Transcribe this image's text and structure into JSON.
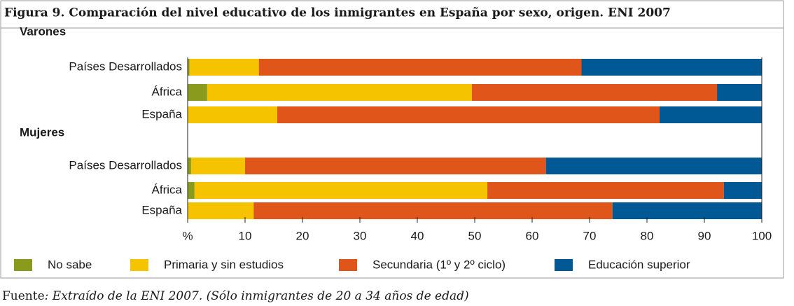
{
  "chart_data": {
    "type": "stacked_barh",
    "title": "Figura 9. Comparación del nivel educativo de los inmigrantes en España por sexo, origen. ENI 2007",
    "group_labels": [
      "Varones",
      "Mujeres"
    ],
    "categories": [
      "Países Desarrollados",
      "África",
      "España",
      "Países Desarrollados",
      "África",
      "España"
    ],
    "series": [
      {
        "name": "No sabe",
        "color": "#8a9a1c",
        "values": [
          0.3,
          3.4,
          0,
          0.6,
          1.2,
          0
        ]
      },
      {
        "name": "Primaria y sin estudios",
        "color": "#f6c300",
        "values": [
          12.1,
          46.1,
          15.6,
          9.4,
          51.0,
          11.5
        ]
      },
      {
        "name": "Secundaria (1º y 2º ciclo)",
        "color": "#e05519",
        "values": [
          56.2,
          42.7,
          66.6,
          52.4,
          41.2,
          62.5
        ]
      },
      {
        "name": "Educación superior",
        "color": "#005894",
        "values": [
          31.4,
          7.8,
          17.8,
          37.6,
          6.6,
          26.0
        ]
      }
    ],
    "xlim": [
      0,
      100
    ],
    "xticks": [
      {
        "value": 0,
        "label": "%"
      },
      10,
      20,
      30,
      40,
      50,
      60,
      70,
      80,
      90,
      100
    ],
    "source_prefix": "Fuente",
    "source": ": Extraído de la ENI 2007. (Sólo inmigrantes de 20 a 34 años de edad)"
  }
}
